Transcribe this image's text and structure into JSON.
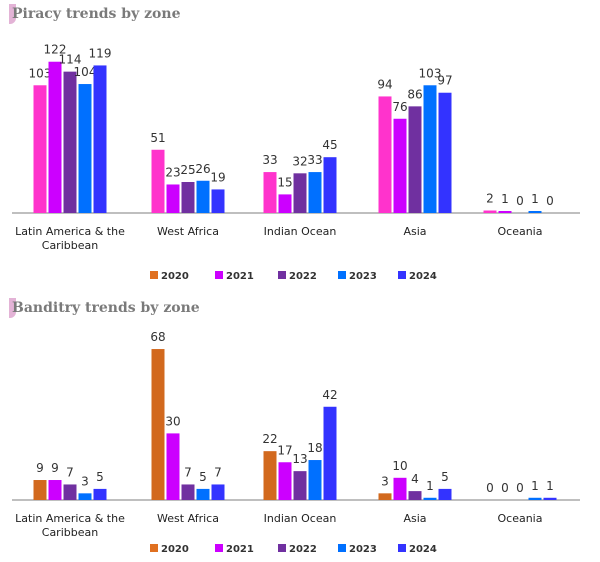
{
  "chart_data": [
    {
      "type": "bar",
      "title": "Piracy trends by zone",
      "categories": [
        "Latin America & the Caribbean",
        "West Africa",
        "Indian Ocean",
        "Asia",
        "Oceania"
      ],
      "series": [
        {
          "name": "2020",
          "color": "#ff33cc",
          "values": [
            103,
            51,
            33,
            94,
            2
          ]
        },
        {
          "name": "2021",
          "color": "#cc00ff",
          "values": [
            122,
            23,
            15,
            76,
            1
          ]
        },
        {
          "name": "2022",
          "color": "#7030a0",
          "values": [
            114,
            25,
            32,
            86,
            0
          ]
        },
        {
          "name": "2023",
          "color": "#0070ff",
          "values": [
            104,
            26,
            33,
            103,
            1
          ]
        },
        {
          "name": "2024",
          "color": "#3333ff",
          "values": [
            119,
            19,
            45,
            97,
            0
          ]
        }
      ],
      "legend_colors": [
        "#e07020",
        "#cc00ff",
        "#7030a0",
        "#0070ff",
        "#3333ff"
      ],
      "legend": "bottom",
      "grid": false
    },
    {
      "type": "bar",
      "title": "Banditry trends by zone",
      "categories": [
        "Latin America & the Caribbean",
        "West Africa",
        "Indian Ocean",
        "Asia",
        "Oceania"
      ],
      "series": [
        {
          "name": "2020",
          "color": "#d2691e",
          "values": [
            9,
            68,
            22,
            3,
            0
          ]
        },
        {
          "name": "2021",
          "color": "#cc00ff",
          "values": [
            9,
            30,
            17,
            10,
            0
          ]
        },
        {
          "name": "2022",
          "color": "#7030a0",
          "values": [
            7,
            7,
            13,
            4,
            0
          ]
        },
        {
          "name": "2023",
          "color": "#0070ff",
          "values": [
            3,
            5,
            18,
            1,
            1
          ]
        },
        {
          "name": "2024",
          "color": "#3333ff",
          "values": [
            5,
            7,
            42,
            5,
            1
          ]
        }
      ],
      "legend_colors": [
        "#e07020",
        "#cc00ff",
        "#7030a0",
        "#0070ff",
        "#3333ff"
      ],
      "legend": "bottom",
      "grid": false
    }
  ]
}
